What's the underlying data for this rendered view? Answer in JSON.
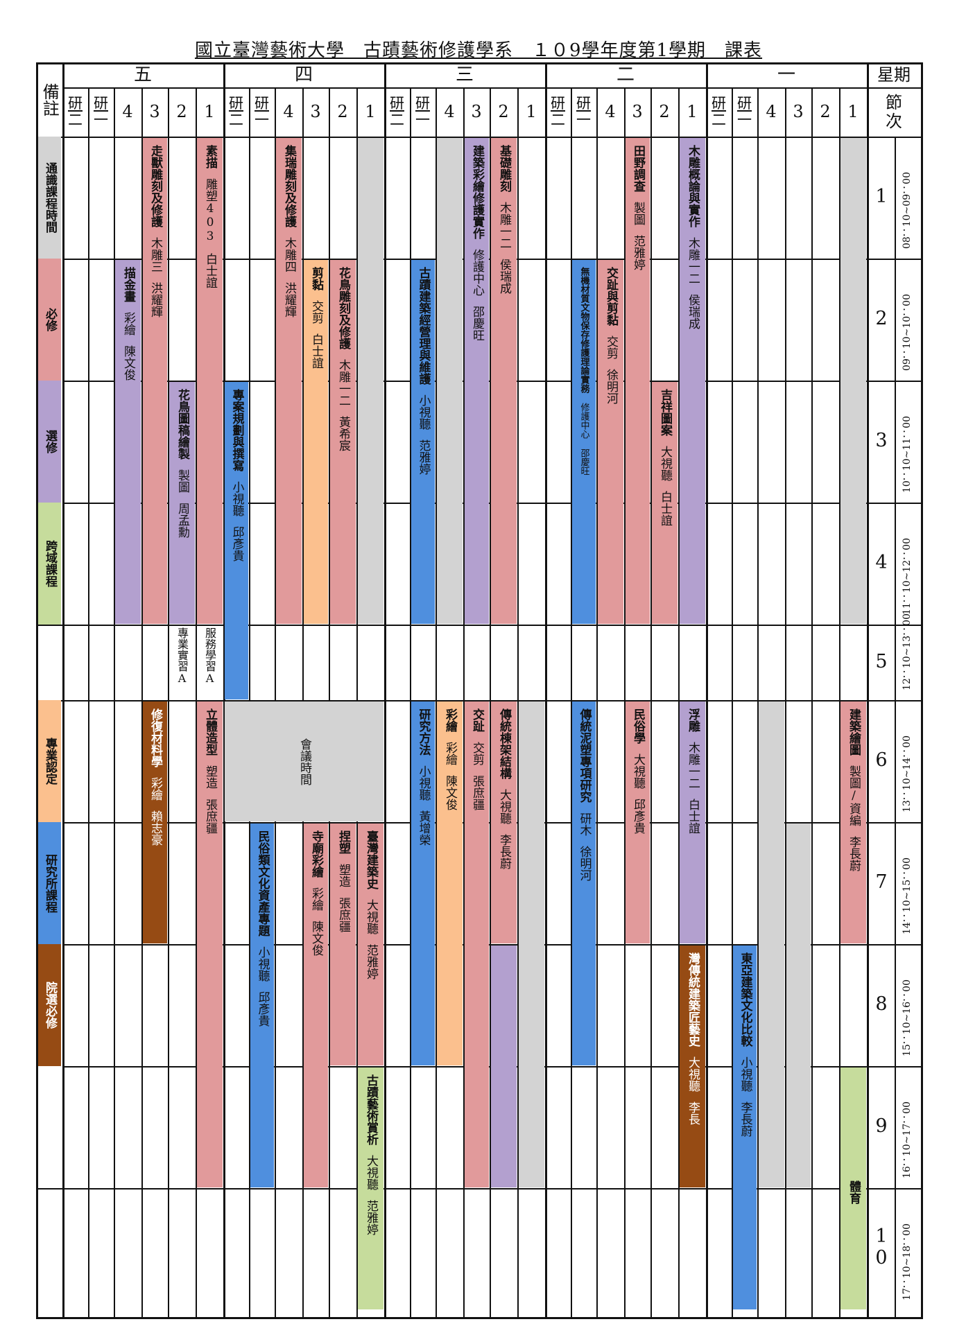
{
  "title": "國立臺灣藝術大學　古蹟藝術修護學系　１０9學年度第1學期　課表",
  "corner_left": "備註",
  "corner_right_top": "星期",
  "corner_right_bottom": "節次",
  "days": [
    {
      "label": "五",
      "cols": [
        "研二",
        "研一",
        "4",
        "3",
        "2",
        "1"
      ]
    },
    {
      "label": "四",
      "cols": [
        "研二",
        "研一",
        "4",
        "3",
        "2",
        "1"
      ]
    },
    {
      "label": "三",
      "cols": [
        "研二",
        "研一",
        "4",
        "3",
        "2",
        "1"
      ]
    },
    {
      "label": "二",
      "cols": [
        "研二",
        "研一",
        "4",
        "3",
        "2",
        "1"
      ]
    },
    {
      "label": "一",
      "cols": [
        "研二",
        "研一",
        "4",
        "3",
        "2",
        "1"
      ]
    }
  ],
  "periods": [
    {
      "num": "1",
      "time": "08：10~09：00"
    },
    {
      "num": "2",
      "time": "09：10~10：00"
    },
    {
      "num": "3",
      "time": "10：10~11：00"
    },
    {
      "num": "4",
      "time": "11：10~12：00"
    },
    {
      "num": "5",
      "time": "12：10~13：00"
    },
    {
      "num": "6",
      "time": "13：10~14：00"
    },
    {
      "num": "7",
      "time": "14：10~15：00"
    },
    {
      "num": "8",
      "time": "15：10~16：00"
    },
    {
      "num": "9",
      "time": "16：10~17：00"
    },
    {
      "num": "10",
      "time": "17：10~18：00"
    }
  ],
  "legend": [
    {
      "label": "通識課程時間",
      "color": "#d3d3d3"
    },
    {
      "label": "必修",
      "color": "#e19a9b"
    },
    {
      "label": "選修",
      "color": "#b3a0cf"
    },
    {
      "label": "跨域課程",
      "color": "#c6dc9c"
    },
    {
      "label": "專業認定",
      "color": "#fbc08e"
    },
    {
      "label": "研究所課程",
      "color": "#4f8fde"
    },
    {
      "label": "院選必修",
      "color": "#964b14"
    }
  ],
  "colors": {
    "gray": "#d3d3d3",
    "req": "#e19a9b",
    "elec": "#b3a0cf",
    "cross": "#c6dc9c",
    "pro": "#fbc08e",
    "grad": "#4f8fde",
    "college": "#964b14"
  },
  "courses": [
    {
      "col": 2,
      "start": 2,
      "end": 4,
      "type": "elec",
      "name": "描金畫",
      "room": "彩繪",
      "teacher": "陳文俊"
    },
    {
      "col": 3,
      "start": 1,
      "end": 4,
      "type": "req",
      "name": "走獸雕刻及修護",
      "room": "木雕三",
      "teacher": "洪耀輝"
    },
    {
      "col": 4,
      "start": 3,
      "end": 4,
      "type": "elec",
      "name": "花鳥圖稿繪製",
      "room": "製圖",
      "teacher": "周孟勳"
    },
    {
      "col": 5,
      "start": 1,
      "end": 4,
      "type": "req",
      "name": "素描",
      "room": "雕塑403",
      "teacher": "白士誼"
    },
    {
      "col": 3,
      "start": 6,
      "end": 7,
      "type": "college",
      "name": "修復材料學",
      "room": "彩繪",
      "teacher": "賴志豪"
    },
    {
      "col": 5,
      "start": 6,
      "end": 9,
      "type": "req",
      "name": "立體造型",
      "room": "塑造",
      "teacher": "張庶疆"
    },
    {
      "col": 6,
      "start": 3,
      "end": 5,
      "type": "grad",
      "name": "專案規劃與撰寫",
      "room": "小視聽",
      "teacher": "邱彥貴"
    },
    {
      "col": 8,
      "start": 1,
      "end": 4,
      "type": "req",
      "name": "集瑞雕刻及修護",
      "room": "木雕四",
      "teacher": "洪耀輝"
    },
    {
      "col": 9,
      "start": 2,
      "end": 4,
      "type": "pro",
      "name": "剪黏",
      "room": "交剪",
      "teacher": "白士誼"
    },
    {
      "col": 10,
      "start": 2,
      "end": 4,
      "type": "req",
      "name": "花鳥雕刻及修護",
      "room": "木雕一二",
      "teacher": "黃希宸"
    },
    {
      "col": 11,
      "start": 1,
      "end": 4,
      "type": "gray",
      "name": "",
      "room": "",
      "teacher": ""
    },
    {
      "col": 6,
      "start": 6,
      "end": 6,
      "type": "gray",
      "name": "會議時間",
      "room": "",
      "teacher": "",
      "span": 6
    },
    {
      "col": 7,
      "start": 7,
      "end": 9,
      "type": "grad",
      "name": "民俗類文化資產專題",
      "room": "小視聽",
      "teacher": "邱彥貴"
    },
    {
      "col": 9,
      "start": 7,
      "end": 9,
      "type": "req",
      "name": "寺廟彩繪",
      "room": "彩繪",
      "teacher": "陳文俊"
    },
    {
      "col": 10,
      "start": 7,
      "end": 8,
      "type": "req",
      "name": "捏塑",
      "room": "塑造",
      "teacher": "張庶疆"
    },
    {
      "col": 11,
      "start": 7,
      "end": 8,
      "type": "req",
      "name": "臺灣建築史",
      "room": "大視聽",
      "teacher": "范雅婷"
    },
    {
      "col": 11,
      "start": 9,
      "end": 10,
      "type": "cross",
      "name": "古蹟藝術賞析",
      "room": "大視聽",
      "teacher": "范雅婷"
    },
    {
      "col": 13,
      "start": 2,
      "end": 4,
      "type": "grad",
      "name": "古蹟建築經營理與維護",
      "room": "小視聽",
      "teacher": "范雅婷"
    },
    {
      "col": 14,
      "start": 1,
      "end": 4,
      "type": "gray",
      "name": "",
      "room": "",
      "teacher": ""
    },
    {
      "col": 15,
      "start": 1,
      "end": 4,
      "type": "elec",
      "name": "建築彩繪修護實作",
      "room": "修護中心",
      "teacher": "邵慶旺"
    },
    {
      "col": 16,
      "start": 1,
      "end": 4,
      "type": "req",
      "name": "基礎雕刻",
      "room": "木雕一二",
      "teacher": "侯瑞成"
    },
    {
      "col": 13,
      "start": 6,
      "end": 8,
      "type": "grad",
      "name": "研究方法",
      "room": "小視聽",
      "teacher": "黃增榮"
    },
    {
      "col": 14,
      "start": 6,
      "end": 8,
      "type": "pro",
      "name": "彩繪",
      "room": "彩繪",
      "teacher": "陳文俊"
    },
    {
      "col": 15,
      "start": 6,
      "end": 9,
      "type": "req",
      "name": "交趾",
      "room": "交剪",
      "teacher": "張庶疆"
    },
    {
      "col": 16,
      "start": 6,
      "end": 7,
      "type": "req",
      "name": "傳統棟架結構",
      "room": "大視聽",
      "teacher": "李長蔚"
    },
    {
      "col": 16,
      "start": 8,
      "end": 9,
      "type": "elec",
      "name": "",
      "room": "",
      "teacher": ""
    },
    {
      "col": 17,
      "start": 6,
      "end": 9,
      "type": "gray",
      "name": "",
      "room": "",
      "teacher": ""
    },
    {
      "col": 19,
      "start": 2,
      "end": 4,
      "type": "grad",
      "name": "無機材質文物保存修護理論實務",
      "room": "修護中心",
      "teacher": "邵慶旺",
      "small": true
    },
    {
      "col": 20,
      "start": 2,
      "end": 4,
      "type": "req",
      "name": "交趾與剪黏",
      "room": "交剪",
      "teacher": "徐明河"
    },
    {
      "col": 21,
      "start": 1,
      "end": 4,
      "type": "req",
      "name": "田野調查",
      "room": "製圖",
      "teacher": "范雅婷"
    },
    {
      "col": 22,
      "start": 3,
      "end": 4,
      "type": "req",
      "name": "吉祥圖案",
      "room": "大視聽",
      "teacher": "白士誼"
    },
    {
      "col": 23,
      "start": 1,
      "end": 4,
      "type": "elec",
      "name": "木雕概論與實作",
      "room": "木雕一二",
      "teacher": "侯瑞成"
    },
    {
      "col": 19,
      "start": 6,
      "end": 8,
      "type": "grad",
      "name": "傳統泥塑專項研究",
      "room": "研木",
      "teacher": "徐明河"
    },
    {
      "col": 21,
      "start": 6,
      "end": 7,
      "type": "req",
      "name": "民俗學",
      "room": "大視聽",
      "teacher": "邱彥貴"
    },
    {
      "col": 23,
      "start": 6,
      "end": 7,
      "type": "elec",
      "name": "浮雕",
      "room": "木雕一二",
      "teacher": "白士誼"
    },
    {
      "col": 23,
      "start": 8,
      "end": 9,
      "type": "college",
      "name": "灣傳統建築匠藝史",
      "room": "大視聽",
      "teacher": "李長"
    },
    {
      "col": 25,
      "start": 8,
      "end": 10,
      "type": "grad",
      "name": "東亞建築文化比較",
      "room": "小視聽",
      "teacher": "李長蔚"
    },
    {
      "col": 26,
      "start": 6,
      "end": 9,
      "type": "gray",
      "name": "",
      "room": "",
      "teacher": ""
    },
    {
      "col": 27,
      "start": 7,
      "end": 9,
      "type": "gray",
      "name": "",
      "room": "",
      "teacher": ""
    },
    {
      "col": 29,
      "start": 1,
      "end": 4,
      "type": "gray",
      "name": "",
      "room": "",
      "teacher": ""
    },
    {
      "col": 29,
      "start": 6,
      "end": 7,
      "type": "req",
      "name": "建築繪圖",
      "room": "製圖/資編",
      "teacher": "李長蔚"
    },
    {
      "col": 29,
      "start": 9,
      "end": 10,
      "type": "cross",
      "name": "體育",
      "room": "",
      "teacher": "",
      "nopad": true
    }
  ],
  "notes": [
    {
      "col": 4,
      "text": "專業實習A"
    },
    {
      "col": 5,
      "text": "服務學習A"
    }
  ]
}
